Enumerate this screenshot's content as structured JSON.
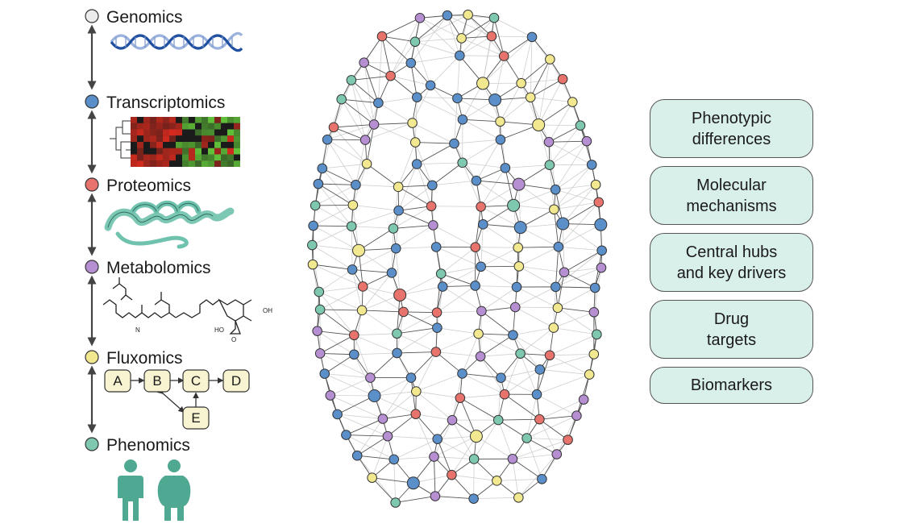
{
  "omics": [
    {
      "label": "Genomics",
      "color": "#ececec"
    },
    {
      "label": "Transcriptomics",
      "color": "#5b8fc9"
    },
    {
      "label": "Proteomics",
      "color": "#e7736c"
    },
    {
      "label": "Metabolomics",
      "color": "#b58fd1"
    },
    {
      "label": "Fluxomics",
      "color": "#f1e890"
    },
    {
      "label": "Phenomics",
      "color": "#7ec8b0"
    }
  ],
  "fluxomics_nodes": [
    "A",
    "B",
    "C",
    "D",
    "E"
  ],
  "chemical_labels": {
    "amide": "N",
    "hydroxyl_1": "OH",
    "hydroxyl_2": "HO",
    "epoxide": "O"
  },
  "outputs": [
    {
      "label": "Phenotypic\ndifferences"
    },
    {
      "label": "Molecular\nmechanisms"
    },
    {
      "label": "Central hubs\nand key drivers"
    },
    {
      "label": "Drug\ntargets"
    },
    {
      "label": "Biomarkers"
    }
  ],
  "colors": {
    "helix": "#1f4fa0",
    "helix_light": "#9bb3dc",
    "protein": "#6fc2ad",
    "heatmap_red": "#d92b1e",
    "heatmap_green": "#62c43a",
    "flux_box": "#f8f3d1",
    "person": "#4fa892",
    "output_box": "#d9efea"
  }
}
